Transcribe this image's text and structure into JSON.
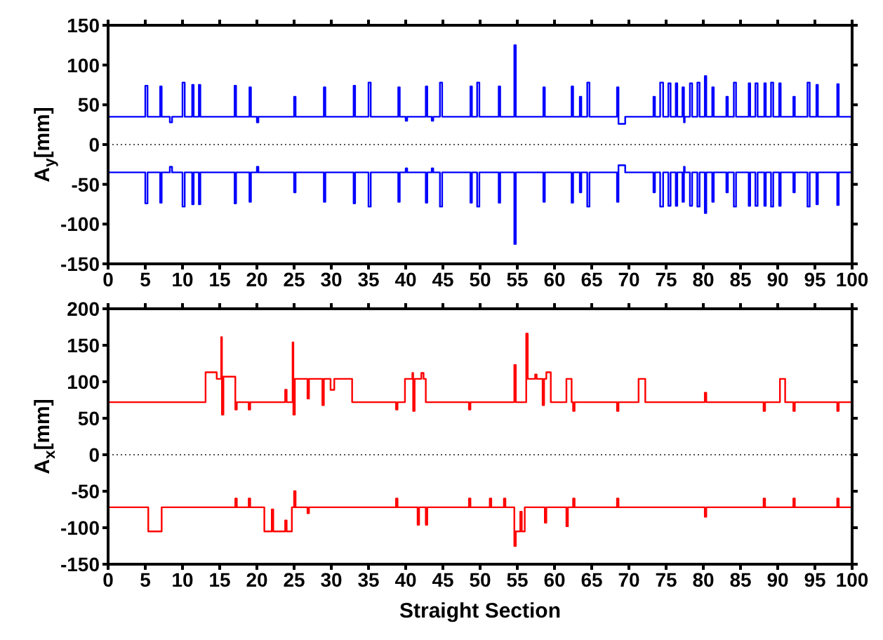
{
  "chart_data": [
    {
      "type": "step",
      "ylabel": "A$_{y}$[mm]",
      "xlim": [
        0,
        100
      ],
      "xticks": [
        0,
        5,
        10,
        15,
        20,
        25,
        30,
        35,
        40,
        45,
        50,
        55,
        60,
        65,
        70,
        75,
        80,
        85,
        90,
        95,
        100
      ],
      "ylim": [
        -150,
        150
      ],
      "yticks": [
        -150,
        -100,
        -50,
        0,
        50,
        100,
        150
      ],
      "ref_lines": [
        {
          "axis": "y",
          "value": 0,
          "color": "#555555",
          "line_style": "dotted"
        }
      ],
      "series": [
        {
          "color": "#0000ff",
          "x": [
            0,
            5,
            5.3,
            7,
            7.2,
            8.3,
            8.6,
            10,
            10.3,
            11.3,
            11.5,
            12.2,
            12.4,
            17,
            17.2,
            19,
            19.2,
            20,
            20.2,
            25,
            25.2,
            29,
            29.2,
            33,
            33.2,
            35,
            35.3,
            39,
            39.2,
            40,
            40.2,
            42.7,
            42.9,
            43.5,
            43.7,
            44.6,
            44.9,
            48.7,
            48.9,
            49.6,
            49.9,
            52.5,
            52.7,
            54.6,
            54.8,
            58.5,
            58.7,
            62.3,
            62.5,
            63.4,
            63.6,
            64.4,
            64.7,
            68.4,
            68.6,
            69.5,
            73.3,
            73.5,
            74.2,
            74.6,
            75.3,
            75.6,
            76.3,
            76.5,
            77.2,
            77.4,
            77.5,
            78.2,
            78.5,
            79.2,
            79.5,
            80.2,
            80.4,
            81.2,
            81.4,
            83.1,
            83.3,
            84.1,
            84.4,
            86.1,
            86.3,
            87,
            87.3,
            88.2,
            88.4,
            89.1,
            89.4,
            90.2,
            90.4,
            92.1,
            92.3,
            94,
            94.3,
            95.2,
            95.4,
            98,
            98.2,
            100
          ],
          "values": [
            35,
            74,
            35,
            73,
            35,
            28,
            35,
            78,
            35,
            75,
            35,
            75,
            35,
            74,
            35,
            72,
            35,
            28,
            35,
            60,
            35,
            72,
            35,
            74,
            35,
            78,
            35,
            72,
            35,
            30,
            35,
            73,
            35,
            30,
            35,
            78,
            35,
            73,
            35,
            78,
            35,
            73,
            35,
            125,
            35,
            72,
            35,
            73,
            35,
            60,
            35,
            78,
            35,
            72,
            26,
            35,
            60,
            35,
            78,
            35,
            77,
            35,
            77,
            35,
            72,
            28,
            35,
            77,
            35,
            78,
            35,
            86,
            35,
            72,
            35,
            60,
            35,
            78,
            35,
            77,
            35,
            77,
            35,
            77,
            35,
            78,
            35,
            77,
            35,
            60,
            35,
            78,
            35,
            75,
            35,
            76,
            35,
            35
          ]
        },
        {
          "color": "#0000ff",
          "x": [
            0,
            5,
            5.3,
            7,
            7.2,
            8.3,
            8.6,
            10,
            10.3,
            11.3,
            11.5,
            12.2,
            12.4,
            17,
            17.2,
            19,
            19.2,
            20,
            20.2,
            25,
            25.2,
            29,
            29.2,
            33,
            33.2,
            35,
            35.3,
            39,
            39.2,
            40,
            40.2,
            42.7,
            42.9,
            43.5,
            43.7,
            44.6,
            44.9,
            48.7,
            48.9,
            49.6,
            49.9,
            52.5,
            52.7,
            54.6,
            54.8,
            58.5,
            58.7,
            62.3,
            62.5,
            63.4,
            63.6,
            64.4,
            64.7,
            68.4,
            68.6,
            69.5,
            73.3,
            73.5,
            74.2,
            74.6,
            75.3,
            75.6,
            76.3,
            76.5,
            77.2,
            77.4,
            77.5,
            78.2,
            78.5,
            79.2,
            79.5,
            80.2,
            80.4,
            81.2,
            81.4,
            83.1,
            83.3,
            84.1,
            84.4,
            86.1,
            86.3,
            87,
            87.3,
            88.2,
            88.4,
            89.1,
            89.4,
            90.2,
            90.4,
            92.1,
            92.3,
            94,
            94.3,
            95.2,
            95.4,
            98,
            98.2,
            100
          ],
          "values": [
            -35,
            -74,
            -35,
            -73,
            -35,
            -28,
            -35,
            -78,
            -35,
            -75,
            -35,
            -75,
            -35,
            -74,
            -35,
            -72,
            -35,
            -28,
            -35,
            -60,
            -35,
            -72,
            -35,
            -74,
            -35,
            -78,
            -35,
            -72,
            -35,
            -30,
            -35,
            -73,
            -35,
            -30,
            -35,
            -78,
            -35,
            -73,
            -35,
            -78,
            -35,
            -73,
            -35,
            -125,
            -35,
            -72,
            -35,
            -73,
            -35,
            -60,
            -35,
            -78,
            -35,
            -72,
            -26,
            -35,
            -60,
            -35,
            -78,
            -35,
            -77,
            -35,
            -77,
            -35,
            -72,
            -28,
            -35,
            -77,
            -35,
            -78,
            -35,
            -86,
            -35,
            -72,
            -35,
            -60,
            -35,
            -78,
            -35,
            -77,
            -35,
            -77,
            -35,
            -77,
            -35,
            -78,
            -35,
            -77,
            -35,
            -60,
            -35,
            -78,
            -35,
            -75,
            -35,
            -76,
            -35,
            -35
          ]
        }
      ]
    },
    {
      "type": "step",
      "xlabel": "Straight Section",
      "ylabel": "A$_{x}$[mm]",
      "xlim": [
        0,
        100
      ],
      "xticks": [
        0,
        5,
        10,
        15,
        20,
        25,
        30,
        35,
        40,
        45,
        50,
        55,
        60,
        65,
        70,
        75,
        80,
        85,
        90,
        95,
        100
      ],
      "ylim": [
        -150,
        200
      ],
      "yticks": [
        -150,
        -100,
        -50,
        0,
        50,
        100,
        150,
        200
      ],
      "ref_lines": [
        {
          "axis": "y",
          "value": 0,
          "color": "#555555",
          "line_style": "dotted"
        }
      ],
      "series": [
        {
          "color": "#ff0000",
          "x": [
            0,
            13.1,
            14.6,
            15.2,
            15.3,
            15.5,
            17.1,
            17.3,
            18.9,
            19.1,
            23.8,
            24,
            24.8,
            24.9,
            25.1,
            26.8,
            27,
            28.8,
            29,
            29.9,
            30.4,
            32.8,
            38.7,
            38.9,
            39.9,
            40.9,
            41,
            41.2,
            42.1,
            42.4,
            42.7,
            48.5,
            48.7,
            54.6,
            54.8,
            56.2,
            56.4,
            57.4,
            57.6,
            58.4,
            58.6,
            58.9,
            59.5,
            61.6,
            62.3,
            62.5,
            62.7,
            68.4,
            68.6,
            71.3,
            72.2,
            80.2,
            80.4,
            88.1,
            88.3,
            90.3,
            91,
            92.1,
            92.3,
            98,
            98.2,
            100
          ],
          "values": [
            72,
            113,
            104,
            161,
            55,
            107,
            62,
            72,
            62,
            72,
            89,
            72,
            154,
            55,
            104,
            77,
            104,
            68,
            104,
            89,
            104,
            72,
            62,
            72,
            104,
            112,
            60,
            104,
            112,
            104,
            72,
            62,
            72,
            123,
            72,
            166,
            104,
            110,
            104,
            68,
            104,
            113,
            72,
            104,
            72,
            60,
            72,
            60,
            72,
            104,
            72,
            85,
            72,
            60,
            72,
            104,
            72,
            60,
            72,
            60,
            72,
            72
          ]
        },
        {
          "color": "#ff0000",
          "x": [
            0,
            5.4,
            7.2,
            17.1,
            17.3,
            18.9,
            19.1,
            21,
            22,
            22.2,
            23.8,
            24,
            24.7,
            25,
            25.2,
            26.8,
            27,
            38.7,
            38.9,
            41.6,
            41.8,
            42.7,
            42.9,
            48.5,
            48.7,
            51.3,
            51.5,
            53.2,
            53.4,
            54.6,
            54.8,
            55.4,
            55.6,
            56,
            58.7,
            58.9,
            61.6,
            61.8,
            62.5,
            62.7,
            68.4,
            68.6,
            80.2,
            80.4,
            88.1,
            88.3,
            92.1,
            92.3,
            98,
            98.2,
            100
          ],
          "values": [
            -72,
            -105,
            -72,
            -60,
            -72,
            -60,
            -72,
            -105,
            -75,
            -105,
            -90,
            -105,
            -72,
            -50,
            -72,
            -80,
            -72,
            -60,
            -72,
            -96,
            -72,
            -96,
            -72,
            -60,
            -72,
            -60,
            -72,
            -60,
            -72,
            -125,
            -105,
            -78,
            -105,
            -72,
            -93,
            -72,
            -98,
            -72,
            -60,
            -72,
            -60,
            -72,
            -85,
            -72,
            -60,
            -72,
            -60,
            -72,
            -60,
            -72,
            -72
          ]
        }
      ]
    }
  ]
}
